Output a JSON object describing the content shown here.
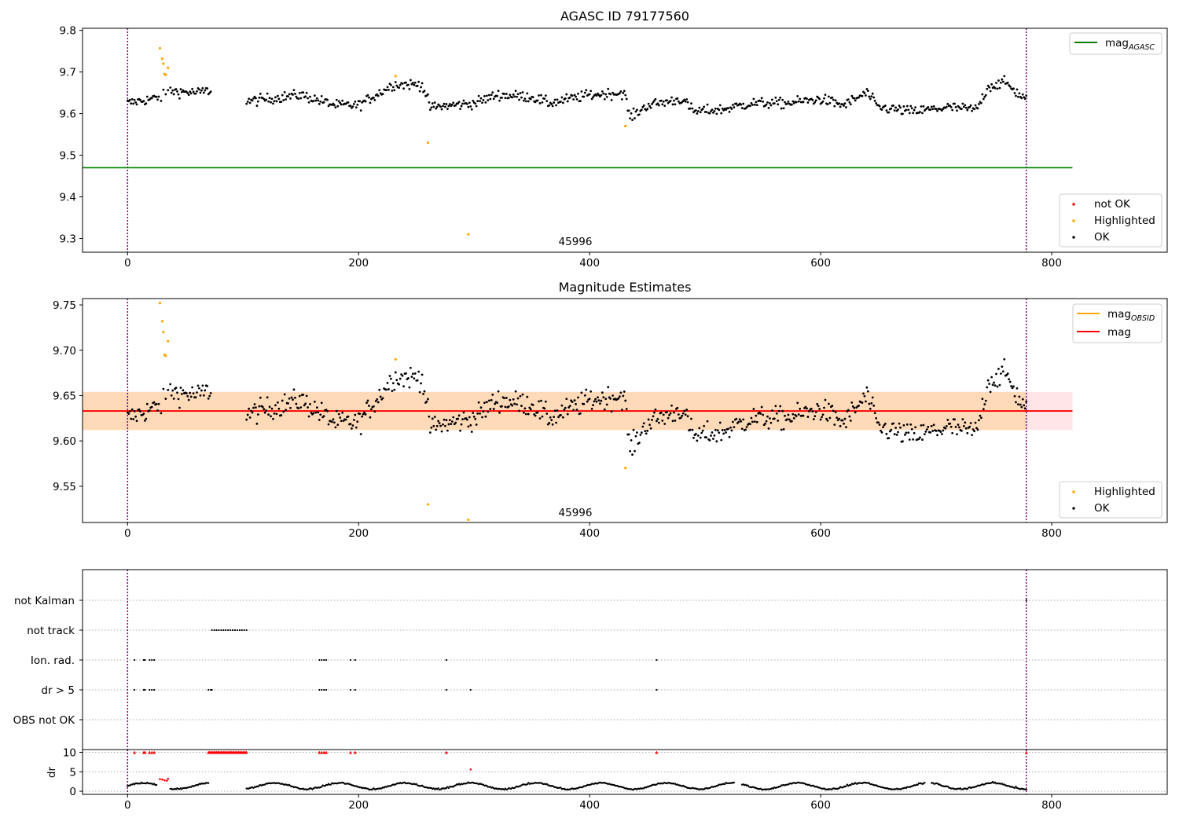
{
  "chart_data": [
    {
      "type": "scatter",
      "title": "AGASC ID 79177560",
      "xlim": [
        -39,
        900
      ],
      "ylim": [
        9.267,
        9.805
      ],
      "xticks": [
        "0",
        "200",
        "400",
        "600",
        "800"
      ],
      "yticks": [
        "9.3",
        "9.4",
        "9.5",
        "9.6",
        "9.7",
        "9.8"
      ],
      "obsid_label": "45996",
      "obsid_label_x": 390,
      "obs_bounds": [
        0,
        778
      ],
      "agasc_mag": 9.47,
      "agasc_line_x": [
        -39,
        818
      ],
      "ok_baseline": [
        [
          0,
          9.625
        ],
        [
          30,
          9.64
        ],
        [
          35,
          9.655
        ],
        [
          60,
          9.65
        ],
        [
          70,
          9.655
        ],
        [
          105,
          9.63
        ],
        [
          150,
          9.645
        ],
        [
          180,
          9.62
        ],
        [
          200,
          9.62
        ],
        [
          230,
          9.67
        ],
        [
          255,
          9.67
        ],
        [
          262,
          9.615
        ],
        [
          300,
          9.625
        ],
        [
          320,
          9.645
        ],
        [
          350,
          9.64
        ],
        [
          365,
          9.625
        ],
        [
          400,
          9.645
        ],
        [
          430,
          9.65
        ],
        [
          435,
          9.59
        ],
        [
          450,
          9.62
        ],
        [
          480,
          9.635
        ],
        [
          490,
          9.605
        ],
        [
          515,
          9.61
        ],
        [
          540,
          9.625
        ],
        [
          570,
          9.625
        ],
        [
          600,
          9.635
        ],
        [
          620,
          9.62
        ],
        [
          640,
          9.65
        ],
        [
          650,
          9.615
        ],
        [
          680,
          9.605
        ],
        [
          710,
          9.615
        ],
        [
          735,
          9.61
        ],
        [
          745,
          9.665
        ],
        [
          760,
          9.675
        ],
        [
          770,
          9.65
        ],
        [
          778,
          9.635
        ]
      ],
      "gaps": [
        [
          72,
          103
        ]
      ],
      "highlighted": [
        [
          28,
          9.757
        ],
        [
          30,
          9.732
        ],
        [
          31,
          9.72
        ],
        [
          32,
          9.695
        ],
        [
          33,
          9.693
        ],
        [
          35,
          9.71
        ],
        [
          232,
          9.69
        ],
        [
          260,
          9.53
        ],
        [
          295,
          9.31
        ],
        [
          431,
          9.57
        ]
      ],
      "legend_upper": [
        "mag",
        "AGASC"
      ],
      "legend_lower": [
        "not OK",
        "Highlighted",
        "OK"
      ],
      "colors": {
        "agasc": "#008000",
        "highlighted": "#ffa500",
        "not_ok": "#ff0000",
        "ok": "#000000",
        "bounds": "#800080"
      }
    },
    {
      "type": "scatter",
      "title": "Magnitude Estimates",
      "xlim": [
        -39,
        900
      ],
      "ylim": [
        9.51,
        9.757
      ],
      "xticks": [
        "0",
        "200",
        "400",
        "600",
        "800"
      ],
      "yticks": [
        "9.55",
        "9.60",
        "9.65",
        "9.70",
        "9.75"
      ],
      "obsid_label": "45996",
      "obsid_label_x": 390,
      "mag": 9.633,
      "mag_band": [
        9.612,
        9.654
      ],
      "mag_line_x": [
        -39,
        818
      ],
      "obsid_band_x": [
        -39,
        778
      ],
      "highlighted": [
        [
          28,
          9.752
        ],
        [
          30,
          9.732
        ],
        [
          31,
          9.72
        ],
        [
          32,
          9.695
        ],
        [
          33,
          9.694
        ],
        [
          35,
          9.71
        ],
        [
          232,
          9.69
        ],
        [
          260,
          9.53
        ],
        [
          295,
          9.513
        ],
        [
          431,
          9.57
        ]
      ],
      "legend_upper": [
        [
          "mag",
          "OBSID"
        ],
        [
          "mag",
          ""
        ]
      ],
      "legend_lower": [
        "Highlighted",
        "OK"
      ],
      "colors": {
        "mag_obsid": "#ffa500",
        "mag": "#ff0000",
        "band_obsid": "#ffdab9",
        "band_mag": "#ffe4e8"
      }
    },
    {
      "type": "scatter",
      "title": "",
      "xlim": [
        -39,
        900
      ],
      "categories": [
        "not Kalman",
        "not track",
        "Ion. rad.",
        "dr > 5",
        "OBS not OK"
      ],
      "flags": {
        "not Kalman": [
          778
        ],
        "not track": [
          73,
          75,
          77,
          79,
          81,
          83,
          85,
          87,
          89,
          91,
          93,
          95,
          97,
          99,
          101,
          103
        ],
        "Ion. rad.": [
          6,
          14,
          15,
          19,
          21,
          23,
          166,
          168,
          170,
          172,
          193,
          197,
          276,
          458
        ],
        "dr > 5": [
          6,
          14,
          15,
          19,
          21,
          23,
          70,
          72,
          73,
          166,
          168,
          170,
          172,
          193,
          197,
          276,
          297,
          458
        ],
        "OBS not OK": []
      },
      "dr_yticks": [
        "0",
        "5",
        "10"
      ],
      "dr_ylabel": "dr",
      "dr_ylim": [
        -0.8,
        10.7
      ],
      "dr_red_capped": [
        6,
        14,
        15,
        19,
        21,
        23,
        70,
        71,
        72,
        73,
        74,
        75,
        76,
        77,
        78,
        79,
        80,
        81,
        82,
        83,
        84,
        85,
        86,
        87,
        88,
        89,
        90,
        91,
        92,
        93,
        94,
        95,
        96,
        97,
        98,
        99,
        100,
        101,
        102,
        103,
        166,
        168,
        170,
        172,
        193,
        197,
        276,
        458,
        778
      ],
      "dr_red_points": [
        [
          28,
          3.1
        ],
        [
          30,
          3.0
        ],
        [
          32,
          2.8
        ],
        [
          34,
          2.7
        ],
        [
          35,
          3.2
        ],
        [
          297,
          5.6
        ]
      ],
      "dr_gaps": [
        [
          70,
          103
        ],
        [
          525,
          532
        ],
        [
          690,
          696
        ]
      ],
      "xticks": [
        "0",
        "200",
        "400",
        "600",
        "800"
      ]
    }
  ]
}
